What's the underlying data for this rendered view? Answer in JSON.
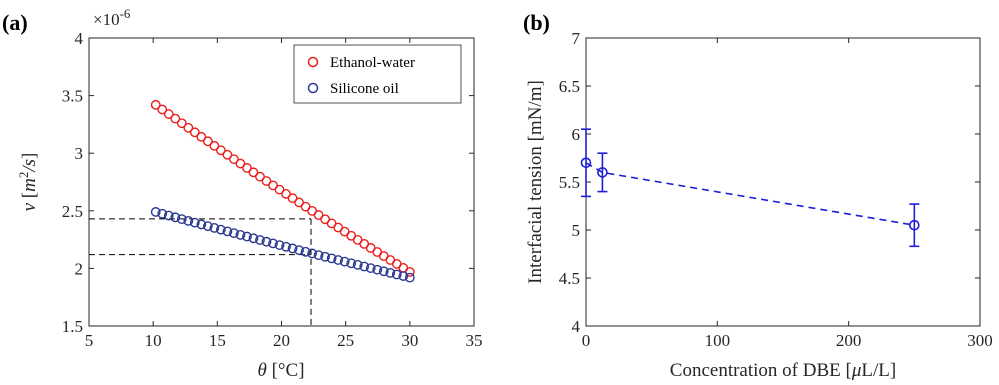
{
  "chart_data": [
    {
      "panel_label": "(a)",
      "type": "scatter",
      "xlabel_symbol": "θ",
      "xlabel_unit": "°C",
      "ylabel_symbol": "ν",
      "ylabel_unit_base": "m",
      "ylabel_unit_exp": "2",
      "ylabel_unit_rest": "/s",
      "y_multiplier_base": "×10",
      "y_multiplier_exp": "-6",
      "xlim": [
        5,
        35
      ],
      "ylim": [
        1.5,
        4
      ],
      "xticks": [
        5,
        10,
        15,
        20,
        25,
        30,
        35
      ],
      "yticks": [
        1.5,
        2,
        2.5,
        3,
        3.5,
        4
      ],
      "ytick_labels": [
        "1.5",
        "2",
        "2.5",
        "3",
        "3.5",
        "4"
      ],
      "legend_position": "top-right",
      "series": [
        {
          "name": "Ethanol-water",
          "color": "#e8201e",
          "marker": "open-circle",
          "x_start": 10.2,
          "x_end": 30.0,
          "count": 40,
          "y_start": 3.42,
          "y_end": 1.97,
          "curvature": 0.12
        },
        {
          "name": "Silicone oil",
          "color": "#2b3990",
          "marker": "open-circle",
          "x_start": 10.2,
          "x_end": 30.0,
          "count": 40,
          "y_start": 2.49,
          "y_end": 1.92,
          "curvature": 0.04
        }
      ],
      "reference_lines": {
        "style": "dashed",
        "color": "#000000",
        "x_value": 22.3,
        "y_values": [
          2.43,
          2.12
        ]
      },
      "grid": false
    },
    {
      "panel_label": "(b)",
      "type": "line",
      "xlabel": "Concentration of DBE",
      "xlabel_unit_symbol": "μ",
      "xlabel_unit_rest": "L/L",
      "ylabel": "Interfacial tension",
      "ylabel_unit": "mN/m",
      "xlim": [
        0,
        300
      ],
      "ylim": [
        4,
        7
      ],
      "xticks": [
        0,
        100,
        200,
        300
      ],
      "yticks": [
        4,
        4.5,
        5,
        5.5,
        6,
        6.5,
        7
      ],
      "ytick_labels": [
        "4",
        "4.5",
        "5",
        "5.5",
        "6",
        "6.5",
        "7"
      ],
      "series": [
        {
          "color": "#1f1fd6",
          "line_style": "dashed",
          "marker": "open-circle",
          "x": [
            0,
            12.5,
            250
          ],
          "y": [
            5.7,
            5.6,
            5.05
          ],
          "yerr": [
            0.35,
            0.2,
            0.22
          ]
        }
      ],
      "grid": false
    }
  ]
}
